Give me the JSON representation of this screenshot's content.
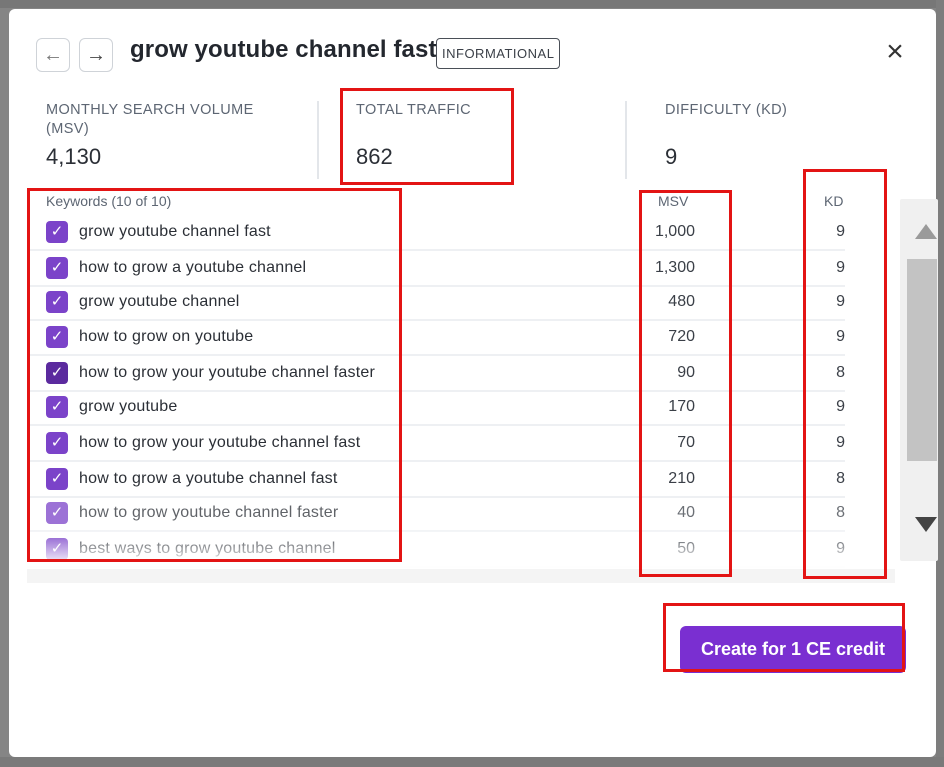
{
  "modal": {
    "title": "grow youtube channel fast",
    "intent_badge": "INFORMATIONAL",
    "close_glyph": "×",
    "back_glyph": "←",
    "forward_glyph": "→"
  },
  "stats": {
    "msv_label": "MONTHLY SEARCH VOLUME (MSV)",
    "msv_value": "4,130",
    "traffic_label": "TOTAL TRAFFIC",
    "traffic_value": "862",
    "kd_label": "DIFFICULTY (KD)",
    "kd_value": "9"
  },
  "table": {
    "keywords_header": "Keywords (10 of 10)",
    "msv_header": "MSV",
    "kd_header": "KD",
    "checkbox_glyph": "✓",
    "rows": [
      {
        "keyword": "grow youtube channel fast",
        "msv": "1,000",
        "kd": "9",
        "checked": true
      },
      {
        "keyword": "how to grow a youtube channel",
        "msv": "1,300",
        "kd": "9",
        "checked": true
      },
      {
        "keyword": "grow youtube channel",
        "msv": "480",
        "kd": "9",
        "checked": true
      },
      {
        "keyword": "how to grow on youtube",
        "msv": "720",
        "kd": "9",
        "checked": true
      },
      {
        "keyword": "how to grow your youtube channel faster",
        "msv": "90",
        "kd": "8",
        "checked": true
      },
      {
        "keyword": "grow youtube",
        "msv": "170",
        "kd": "9",
        "checked": true
      },
      {
        "keyword": "how to grow your youtube channel fast",
        "msv": "70",
        "kd": "9",
        "checked": true
      },
      {
        "keyword": "how to grow a youtube channel fast",
        "msv": "210",
        "kd": "8",
        "checked": true
      },
      {
        "keyword": "how to grow youtube channel faster",
        "msv": "40",
        "kd": "8",
        "checked": true
      },
      {
        "keyword": "best ways to grow youtube channel",
        "msv": "50",
        "kd": "9",
        "checked": true
      }
    ]
  },
  "footer": {
    "cta_label": "Create for 1 CE credit"
  },
  "colors": {
    "accent": "#7a2fd1",
    "highlight": "#e31414",
    "checkbox": "#7b43c9"
  }
}
